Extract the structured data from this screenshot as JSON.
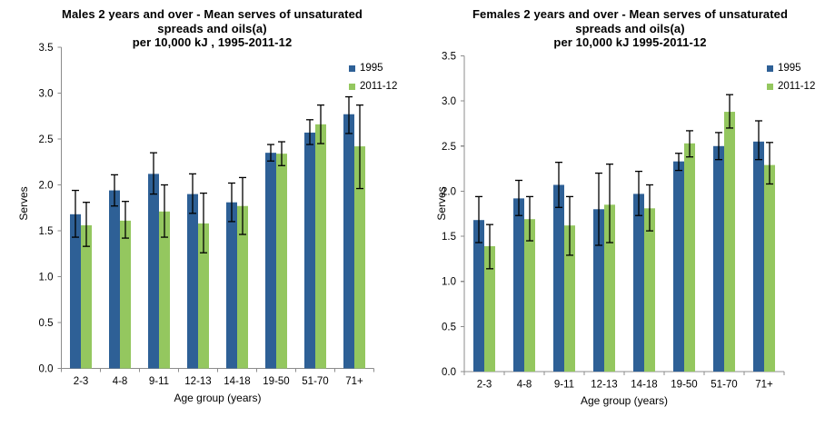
{
  "figure": {
    "background": "#ffffff",
    "text_color": "#000000",
    "axis_color": "#8c8c8c",
    "error_bar_color": "#000000"
  },
  "chart_data": [
    {
      "type": "bar",
      "title_lines": [
        "Males 2 years and over - Mean serves of unsaturated",
        "spreads and oils(a)",
        "per 10,000 kJ , 1995-2011-12"
      ],
      "xlabel": "Age group (years)",
      "ylabel": "Serves",
      "ylim": [
        0,
        3.5
      ],
      "yticks": [
        "0.0",
        "0.5",
        "1.0",
        "1.5",
        "2.0",
        "2.5",
        "3.0",
        "3.5"
      ],
      "grid": false,
      "legend_position": "top-right",
      "categories": [
        "2-3",
        "4-8",
        "9-11",
        "12-13",
        "14-18",
        "19-50",
        "51-70",
        "71+"
      ],
      "series": [
        {
          "name": "1995",
          "color": "#2e6096",
          "values": [
            1.68,
            1.94,
            2.12,
            1.9,
            1.81,
            2.35,
            2.57,
            2.77
          ],
          "error_low": [
            1.43,
            1.77,
            1.9,
            1.69,
            1.6,
            2.26,
            2.44,
            2.56
          ],
          "error_high": [
            1.94,
            2.11,
            2.35,
            2.12,
            2.02,
            2.44,
            2.71,
            2.96
          ]
        },
        {
          "name": "2011-12",
          "color": "#94c75f",
          "values": [
            1.56,
            1.61,
            1.71,
            1.58,
            1.77,
            2.34,
            2.66,
            2.42
          ],
          "error_low": [
            1.33,
            1.42,
            1.43,
            1.26,
            1.46,
            2.21,
            2.45,
            1.96
          ],
          "error_high": [
            1.81,
            1.82,
            2.0,
            1.91,
            2.08,
            2.47,
            2.87,
            2.87
          ]
        }
      ]
    },
    {
      "type": "bar",
      "title_lines": [
        "Females 2 years and over - Mean serves of unsaturated",
        "spreads and oils(a)",
        "per 10,000 kJ 1995-2011-12"
      ],
      "xlabel": "Age group (years)",
      "ylabel": "Serves",
      "ylim": [
        0,
        3.5
      ],
      "yticks": [
        "0.0",
        "0.5",
        "1.0",
        "1.5",
        "2.0",
        "2.5",
        "3.0",
        "3.5"
      ],
      "grid": false,
      "legend_position": "top-right",
      "categories": [
        "2-3",
        "4-8",
        "9-11",
        "12-13",
        "14-18",
        "19-50",
        "51-70",
        "71+"
      ],
      "series": [
        {
          "name": "1995",
          "color": "#2e6096",
          "values": [
            1.68,
            1.92,
            2.07,
            1.8,
            1.97,
            2.33,
            2.5,
            2.55
          ],
          "error_low": [
            1.43,
            1.73,
            1.82,
            1.4,
            1.73,
            2.23,
            2.35,
            2.35
          ],
          "error_high": [
            1.94,
            2.12,
            2.32,
            2.2,
            2.22,
            2.42,
            2.65,
            2.78
          ]
        },
        {
          "name": "2011-12",
          "color": "#94c75f",
          "values": [
            1.39,
            1.69,
            1.62,
            1.85,
            1.81,
            2.53,
            2.88,
            2.29
          ],
          "error_low": [
            1.14,
            1.45,
            1.29,
            1.43,
            1.56,
            2.38,
            2.7,
            2.08
          ],
          "error_high": [
            1.63,
            1.94,
            1.94,
            2.3,
            2.07,
            2.67,
            3.07,
            2.54
          ]
        }
      ]
    }
  ]
}
